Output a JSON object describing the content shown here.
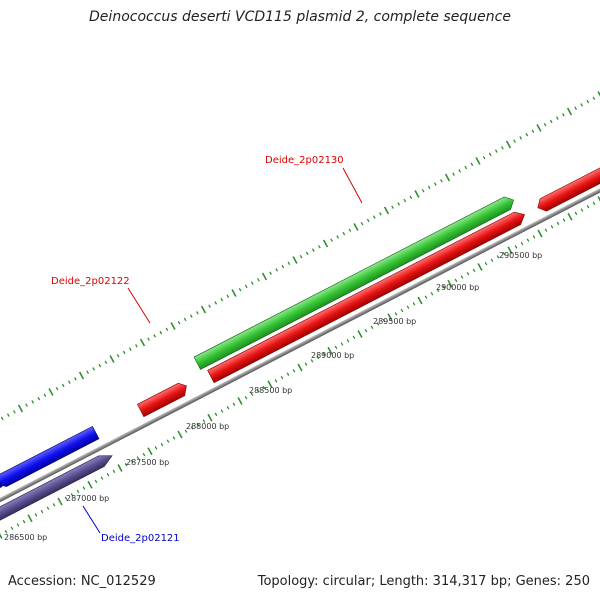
{
  "title": "Deinococcus deserti VCD115 plasmid 2, complete sequence",
  "footer": {
    "accession": "Accession: NC_012529",
    "summary": "Topology: circular; Length: 314,317 bp; Genes: 250"
  },
  "axis_unit": "bp",
  "scale_labels": [
    "286500 bp",
    "287000 bp",
    "287500 bp",
    "288000 bp",
    "288500 bp",
    "289000 bp",
    "289500 bp",
    "290000 bp",
    "290500 bp"
  ],
  "gene_labels": [
    {
      "name": "Deide_2p02130",
      "color": "#dd0000"
    },
    {
      "name": "Deide_2p02122",
      "color": "#dd0000"
    },
    {
      "name": "Deide_2p02121",
      "color": "#0000cc"
    }
  ],
  "feature_colors": {
    "forward_cds": "#dd0000",
    "reverse_cds": "#1a1aee",
    "forward_gene": "#33cc33",
    "reverse_gene": "#5a4f8f",
    "backbone": "#8a8a8a",
    "ticks": "#2f8f2f"
  }
}
